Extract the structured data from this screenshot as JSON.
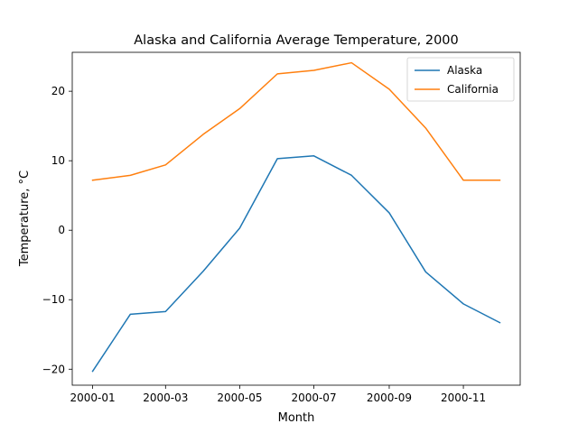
{
  "chart_data": {
    "type": "line",
    "title": "Alaska and California Average Temperature, 2000",
    "xlabel": "Month",
    "ylabel": "Temperature, °C",
    "x": [
      "2000-01",
      "2000-02",
      "2000-03",
      "2000-04",
      "2000-05",
      "2000-06",
      "2000-07",
      "2000-08",
      "2000-09",
      "2000-10",
      "2000-11",
      "2000-12"
    ],
    "x_ticks": [
      "2000-01",
      "2000-03",
      "2000-05",
      "2000-07",
      "2000-09",
      "2000-11"
    ],
    "y_ticks": [
      -20,
      -10,
      0,
      10,
      20
    ],
    "ylim": [
      -22.3,
      25.6
    ],
    "xlim": [
      "2000-01",
      "2000-12"
    ],
    "grid": false,
    "legend_position": "top-right",
    "series": [
      {
        "name": "Alaska",
        "color": "#1f77b4",
        "values": [
          -20.3,
          -12.1,
          -11.7,
          -5.9,
          0.3,
          10.3,
          10.7,
          7.9,
          2.5,
          -6.0,
          -10.6,
          -13.3
        ]
      },
      {
        "name": "California",
        "color": "#ff7f0e",
        "values": [
          7.2,
          7.9,
          9.4,
          13.8,
          17.5,
          22.5,
          23.0,
          24.1,
          20.3,
          14.7,
          7.2,
          7.2
        ]
      }
    ]
  }
}
